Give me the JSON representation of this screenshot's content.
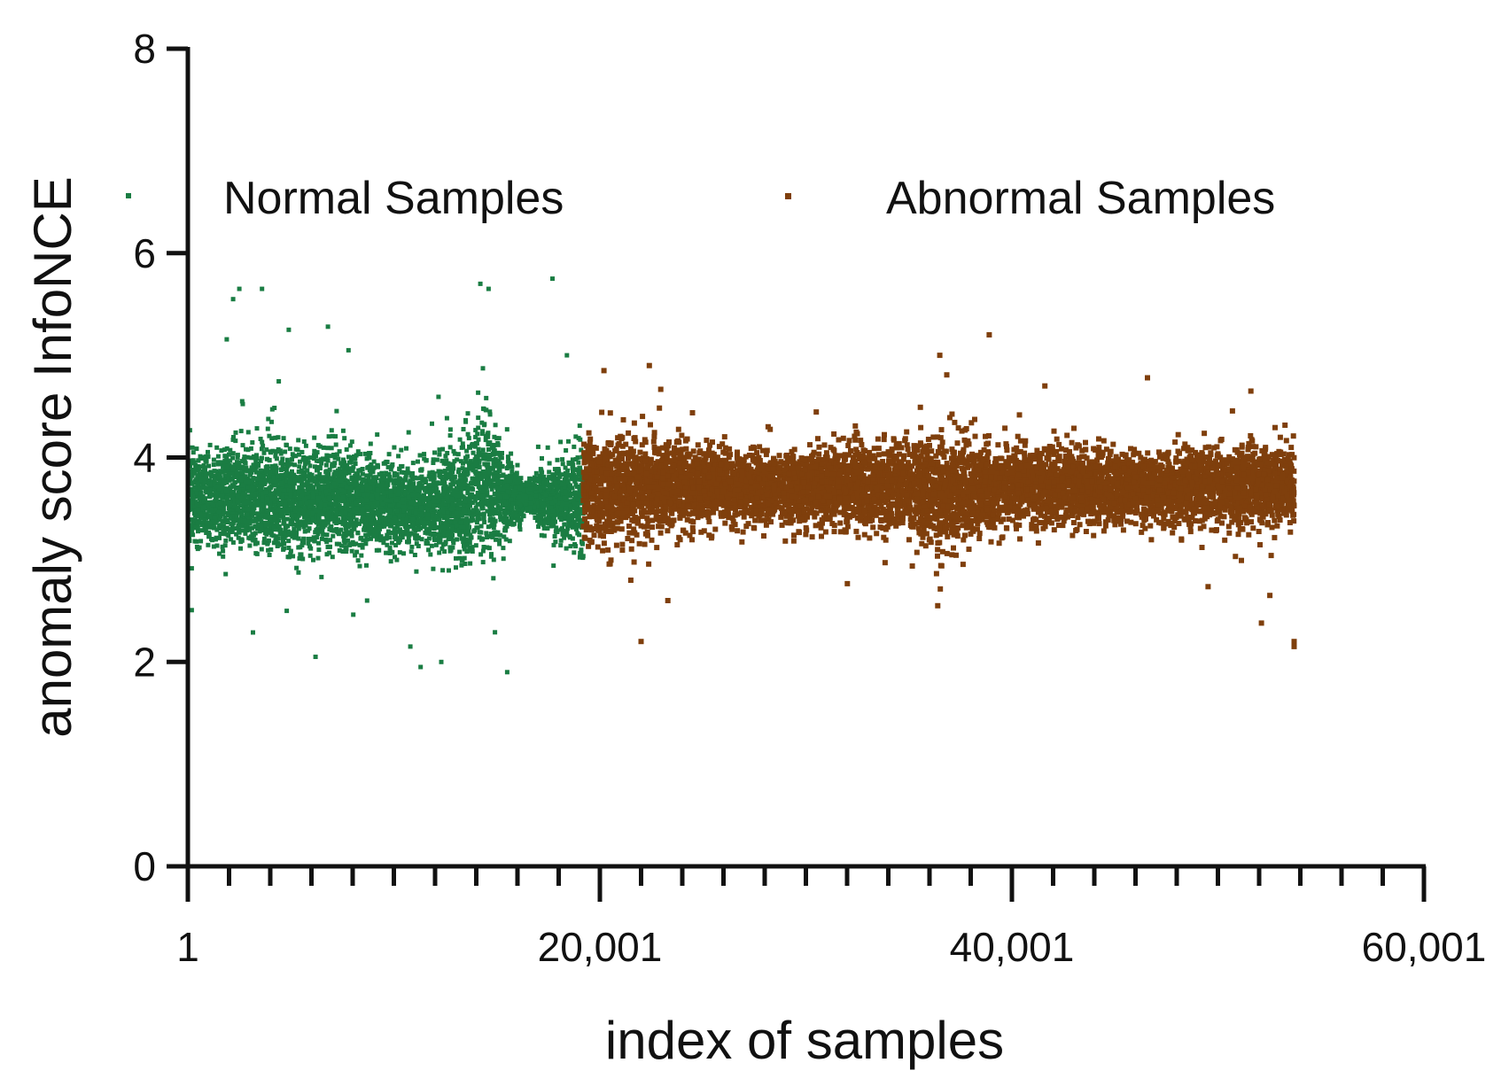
{
  "chart_data": {
    "type": "scatter",
    "title": "",
    "xlabel": "index of samples",
    "ylabel": "anomaly score InfoNCE",
    "xlim": [
      1,
      60001
    ],
    "ylim": [
      0,
      8
    ],
    "x_ticks": [
      1,
      20001,
      40001,
      60001
    ],
    "x_tick_labels": [
      "1",
      "20,001",
      "40,001",
      "60,001"
    ],
    "x_minor_tick_step": 2000,
    "y_ticks": [
      0,
      2,
      4,
      6,
      8
    ],
    "y_tick_labels": [
      "0",
      "2",
      "4",
      "6",
      "8"
    ],
    "grid": false,
    "legend": {
      "placement": "top",
      "orientation": "horizontal"
    },
    "series": [
      {
        "name": "Normal Samples",
        "color": "#1a7d43",
        "x_range": [
          1,
          19200
        ],
        "density": [
          {
            "x": 1,
            "mean": 3.6,
            "spread": 0.45
          },
          {
            "x": 4000,
            "mean": 3.62,
            "spread": 0.5
          },
          {
            "x": 8000,
            "mean": 3.58,
            "spread": 0.45
          },
          {
            "x": 11000,
            "mean": 3.52,
            "spread": 0.35
          },
          {
            "x": 13000,
            "mean": 3.55,
            "spread": 0.5
          },
          {
            "x": 14500,
            "mean": 3.75,
            "spread": 0.75
          },
          {
            "x": 15500,
            "mean": 3.6,
            "spread": 0.35
          },
          {
            "x": 16500,
            "mean": 3.62,
            "spread": 0.14
          },
          {
            "x": 17500,
            "mean": 3.6,
            "spread": 0.35
          },
          {
            "x": 19200,
            "mean": 3.6,
            "spread": 0.5
          }
        ],
        "outliers": [
          {
            "x": 2500,
            "y": 5.65
          },
          {
            "x": 3600,
            "y": 5.65
          },
          {
            "x": 2200,
            "y": 5.55
          },
          {
            "x": 4900,
            "y": 5.25
          },
          {
            "x": 6800,
            "y": 5.28
          },
          {
            "x": 7800,
            "y": 5.05
          },
          {
            "x": 14200,
            "y": 5.7
          },
          {
            "x": 14600,
            "y": 5.65
          },
          {
            "x": 17700,
            "y": 5.75
          },
          {
            "x": 18400,
            "y": 5.0
          },
          {
            "x": 6200,
            "y": 2.05
          },
          {
            "x": 11300,
            "y": 1.95
          },
          {
            "x": 12300,
            "y": 2.0
          },
          {
            "x": 15500,
            "y": 1.9
          },
          {
            "x": 10800,
            "y": 2.15
          },
          {
            "x": 8700,
            "y": 2.6
          },
          {
            "x": 4800,
            "y": 2.5
          }
        ]
      },
      {
        "name": "Abnormal Samples",
        "color": "#7f3f0c",
        "x_range": [
          19200,
          53700
        ],
        "density": [
          {
            "x": 19200,
            "mean": 3.7,
            "spread": 0.5
          },
          {
            "x": 22000,
            "mean": 3.72,
            "spread": 0.45
          },
          {
            "x": 26000,
            "mean": 3.72,
            "spread": 0.33
          },
          {
            "x": 30000,
            "mean": 3.7,
            "spread": 0.33
          },
          {
            "x": 34000,
            "mean": 3.72,
            "spread": 0.4
          },
          {
            "x": 36500,
            "mean": 3.65,
            "spread": 0.55
          },
          {
            "x": 39000,
            "mean": 3.7,
            "spread": 0.38
          },
          {
            "x": 43000,
            "mean": 3.72,
            "spread": 0.38
          },
          {
            "x": 47000,
            "mean": 3.68,
            "spread": 0.28
          },
          {
            "x": 50000,
            "mean": 3.72,
            "spread": 0.38
          },
          {
            "x": 53700,
            "mean": 3.72,
            "spread": 0.35
          }
        ],
        "outliers": [
          {
            "x": 38900,
            "y": 5.2
          },
          {
            "x": 36500,
            "y": 5.0
          },
          {
            "x": 22400,
            "y": 4.9
          },
          {
            "x": 20200,
            "y": 4.85
          },
          {
            "x": 41600,
            "y": 4.7
          },
          {
            "x": 51600,
            "y": 4.65
          },
          {
            "x": 22000,
            "y": 2.2
          },
          {
            "x": 53700,
            "y": 2.2
          },
          {
            "x": 53700,
            "y": 2.15
          },
          {
            "x": 36400,
            "y": 2.55
          },
          {
            "x": 23300,
            "y": 2.6
          },
          {
            "x": 21500,
            "y": 2.8
          }
        ]
      }
    ]
  }
}
